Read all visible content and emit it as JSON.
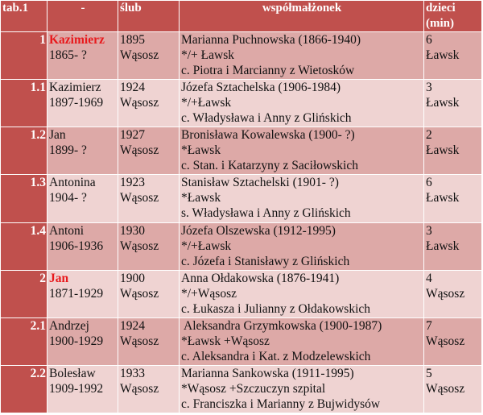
{
  "header": {
    "tab": "tab.1",
    "person": "-",
    "marriage": "ślub",
    "spouse": "współmałżonek",
    "children_line1": "dzieci",
    "children_line2": "(min)"
  },
  "rows": [
    {
      "num": "1",
      "name": "Kazimierz",
      "name_highlight": true,
      "years": "1865- ?",
      "marriage_year": "1895",
      "marriage_place": "Wąsosz",
      "spouse_name": "Marianna Puchnowska (1866-1940)",
      "spouse_life": "*/+ Ławsk",
      "spouse_parents": "c. Piotra i Marcianny z Wietosków",
      "children_count": "6",
      "children_place": "Ławsk"
    },
    {
      "num": "1.1",
      "name": "Kazimierz",
      "name_highlight": false,
      "years": "1897-1969",
      "marriage_year": "1924",
      "marriage_place": "Wąsosz",
      "spouse_name": "Józefa Sztachelska (1906-1984)",
      "spouse_life": "*/+Ławsk",
      "spouse_parents": "c. Władysława i Anny z Glińskich",
      "children_count": "3",
      "children_place": "Ławsk"
    },
    {
      "num": "1.2",
      "name": "Jan",
      "name_highlight": false,
      "years": "1899- ?",
      "marriage_year": "1927",
      "marriage_place": "Wąsosz",
      "spouse_name": "Bronisława Kowalewska (1900- ?)",
      "spouse_life": "*Ławsk",
      "spouse_parents": "c. Stan. i Katarzyny z Saciłowskich",
      "children_count": "2",
      "children_place": "Ławsk"
    },
    {
      "num": "1.3",
      "name": "Antonina",
      "name_highlight": false,
      "years": "1904- ?",
      "marriage_year": "1923",
      "marriage_place": "Wąsosz",
      "spouse_name": "Stanisław Sztachelski (1901- ?)",
      "spouse_life": "*Ławsk",
      "spouse_parents": "s. Władysława i Anny z Glińskich",
      "children_count": "6",
      "children_place": "Ławsk"
    },
    {
      "num": "1.4",
      "name": "Antoni",
      "name_highlight": false,
      "years": "1906-1936",
      "marriage_year": "1930",
      "marriage_place": "Wąsosz",
      "spouse_name": "Józefa Olszewska (1912-1995)",
      "spouse_life": "*/+Ławsk",
      "spouse_parents": "c. Józefa i Stanisławy z Glińskich",
      "children_count": "3",
      "children_place": "Ławsk"
    },
    {
      "num": "2",
      "name": "Jan",
      "name_highlight": true,
      "years": "1871-1929",
      "marriage_year": "1900",
      "marriage_place": "Wąsosz",
      "spouse_name": "Anna Ołdakowska (1876-1941)",
      "spouse_life": "*/+Wąsosz",
      "spouse_parents": "c. Łukasza i Julianny z Ołdakowskich",
      "children_count": "4",
      "children_place": "Wąsosz"
    },
    {
      "num": "2.1",
      "name": "Andrzej",
      "name_highlight": false,
      "years": "1900-1929",
      "marriage_year": "1924",
      "marriage_place": "Wąsosz",
      "spouse_name": " Aleksandra Grzymkowska (1900-1987)",
      "spouse_life": "*Ławsk +Wąsosz",
      "spouse_parents": "c. Aleksandra i Kat. z Modzelewskich",
      "children_count": "7",
      "children_place": "Wąsosz"
    },
    {
      "num": "2.2",
      "name": "Bolesław",
      "name_highlight": false,
      "years": "1909-1992",
      "marriage_year": "1933",
      "marriage_place": "Wąsosz",
      "spouse_name": "Marianna Sankowska (1911-1995)",
      "spouse_life": "*Wąsosz +Szczuczyn szpital",
      "spouse_parents": "c. Franciszka i Marianny z Bujwidysów",
      "children_count": "5",
      "children_place": "Wąsosz"
    }
  ],
  "colors": {
    "header_bg": "#c0504d",
    "row_odd_bg": "#dda9a7",
    "row_even_bg": "#efd3d2",
    "highlight_text": "#e8191c"
  }
}
